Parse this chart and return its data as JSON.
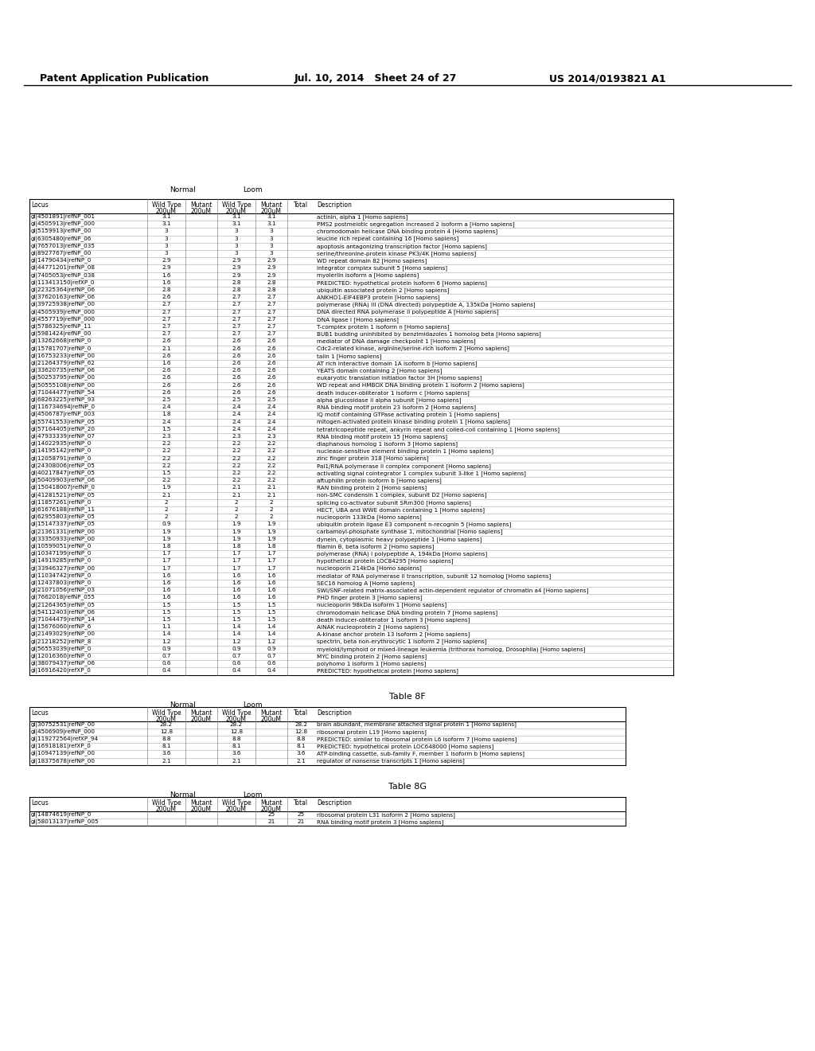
{
  "header_left": "Patent Application Publication",
  "header_middle": "Jul. 10, 2014   Sheet 24 of 27",
  "header_right": "US 2014/0193821 A1",
  "main_table_data": [
    [
      "gi|4501891|refNP_001",
      "3.1",
      "",
      "3.1",
      "3.1",
      "actinin, alpha 1 [Homo sapiens]"
    ],
    [
      "gi|4505913|refNP_000",
      "3.1",
      "",
      "3.1",
      "3.1",
      "PMS2 postmeiotic segregation increased 2 isoform a [Homo sapiens]"
    ],
    [
      "gi|5159913|refNP_00",
      "3",
      "",
      "3",
      "3",
      "chromodomain helicase DNA binding protein 4 [Homo sapiens]"
    ],
    [
      "gi|6305480|refNP_06",
      "3",
      "",
      "3",
      "3",
      "leucine rich repeat containing 16 [Homo sapiens]"
    ],
    [
      "gi|7657013|refNP_035",
      "3",
      "",
      "3",
      "3",
      "apoptosis antagonizing transcription factor [Homo sapiens]"
    ],
    [
      "gi|8927767|refNP_00",
      "3",
      "",
      "3",
      "3",
      "serine/threonine-protein kinase PK3/4K [Homo sapiens]"
    ],
    [
      "gi|14790434|refNP_0",
      "2.9",
      "",
      "2.9",
      "2.9",
      "WD repeat domain 82 [Homo sapiens]"
    ],
    [
      "gi|44771201|refNP_08",
      "2.9",
      "",
      "2.9",
      "2.9",
      "integrator complex subunit 5 [Homo sapiens]"
    ],
    [
      "gi|7405053|refNP_038",
      "1.6",
      "",
      "2.9",
      "2.9",
      "myolerlin isoform a [Homo sapiens]"
    ],
    [
      "gi|113413150|refXP_0",
      "1.6",
      "",
      "2.8",
      "2.8",
      "PREDICTED: hypothetical protein isoform 6 [Homo sapiens]"
    ],
    [
      "gi|22325364|refNP_06",
      "2.8",
      "",
      "2.8",
      "2.8",
      "ubiquitin associated protein 2 [Homo sapiens]"
    ],
    [
      "gi|37620163|refNP_06",
      "2.6",
      "",
      "2.7",
      "2.7",
      "ANKHD1-EIF4EBP3 protein [Homo sapiens]"
    ],
    [
      "gi|39725938|refNP_00",
      "2.7",
      "",
      "2.7",
      "2.7",
      "polymerase (RNA) III (DNA directed) polypeptide A, 135kDa [Homo sapiens]"
    ],
    [
      "gi|4505939|refNP_000",
      "2.7",
      "",
      "2.7",
      "2.7",
      "DNA directed RNA polymerase II polypeptide A [Homo sapiens]"
    ],
    [
      "gi|4557719|refNP_000",
      "2.7",
      "",
      "2.7",
      "2.7",
      "DNA ligase I [Homo sapiens]"
    ],
    [
      "gi|5786325|refNP_11",
      "2.7",
      "",
      "2.7",
      "2.7",
      "T-complex protein 1 isoform n [Homo sapiens]"
    ],
    [
      "gi|5981424|refNP_00",
      "2.7",
      "",
      "2.7",
      "2.7",
      "BUB1 budding uninhibited by benzimidazoles 1 homolog beta [Homo sapiens]"
    ],
    [
      "gi|13262668|refNP_0",
      "2.6",
      "",
      "2.6",
      "2.6",
      "mediator of DNA damage checkpoint 1 [Homo sapiens]"
    ],
    [
      "gi|15781707|refNP_0",
      "2.1",
      "",
      "2.6",
      "2.6",
      "Cdc2-related kinase, arginine/serine-rich isoform 2 [Homo sapiens]"
    ],
    [
      "gi|16753233|refNP_00",
      "2.6",
      "",
      "2.6",
      "2.6",
      "talin 1 [Homo sapiens]"
    ],
    [
      "gi|21264379|refNP_62",
      "1.6",
      "",
      "2.6",
      "2.6",
      "AT rich interactive domain 1A isoform b [Homo sapiens]"
    ],
    [
      "gi|33620735|refNP_06",
      "2.6",
      "",
      "2.6",
      "2.6",
      "YEATS domain containing 2 [Homo sapiens]"
    ],
    [
      "gi|50253795|refNP_00",
      "2.6",
      "",
      "2.6",
      "2.6",
      "eukaryotic translation initiation factor 3H [Homo sapiens]"
    ],
    [
      "gi|50555108|refNP_00",
      "2.6",
      "",
      "2.6",
      "2.6",
      "WD repeat and HMBOX DNA binding protein 1 isoform 2 [Homo sapiens]"
    ],
    [
      "gi|71044477|refNP_54",
      "2.6",
      "",
      "2.6",
      "2.6",
      "death inducer-obliterator 1 isoform c [Homo sapiens]"
    ],
    [
      "gi|68263225|refNP_93",
      "2.5",
      "",
      "2.5",
      "2.5",
      "alpha glucosidase II alpha subunit [Homo sapiens]"
    ],
    [
      "gi|116734694|refNP_0",
      "2.4",
      "",
      "2.4",
      "2.4",
      "RNA binding motif protein 23 isoform 2 [Homo sapiens]"
    ],
    [
      "gi|4506787|refNP_003",
      "1.8",
      "",
      "2.4",
      "2.4",
      "IQ motif containing GTPase activating protein 1 [Homo sapiens]"
    ],
    [
      "gi|55741553|refNP_05",
      "2.4",
      "",
      "2.4",
      "2.4",
      "mitogen-activated protein kinase binding protein 1 [Homo sapiens]"
    ],
    [
      "gi|57164405|refNP_20",
      "1.5",
      "",
      "2.4",
      "2.4",
      "tetratricopeptide repeat, ankyrin repeat and coiled-coil containing 1 [Homo sapiens]"
    ],
    [
      "gi|47933339|refNP_07",
      "2.3",
      "",
      "2.3",
      "2.3",
      "RNA binding motif protein 15 [Homo sapiens]"
    ],
    [
      "gi|14022935|refNP_0",
      "2.2",
      "",
      "2.2",
      "2.2",
      "diaphanous homolog 1 isoform 3 [Homo sapiens]"
    ],
    [
      "gi|14195142|refNP_0",
      "2.2",
      "",
      "2.2",
      "2.2",
      "nuclease-sensitive element binding protein 1 [Homo sapiens]"
    ],
    [
      "gi|12058791|refNP_0",
      "2.2",
      "",
      "2.2",
      "2.2",
      "zinc finger protein 318 [Homo sapiens]"
    ],
    [
      "gi|24308006|refNP_05",
      "2.2",
      "",
      "2.2",
      "2.2",
      "Pal1/RNA polymerase II complex component [Homo sapiens]"
    ],
    [
      "gi|40217847|refNP_05",
      "1.5",
      "",
      "2.2",
      "2.2",
      "activating signal cointegrator 1 complex subunit 3-like 1 [Homo sapiens]"
    ],
    [
      "gi|50409903|refNP_06",
      "2.2",
      "",
      "2.2",
      "2.2",
      "aftuphilin protein isoform b [Homo sapiens]"
    ],
    [
      "gi|150418007|refNP_0",
      "1.9",
      "",
      "2.1",
      "2.1",
      "RAN binding protein 2 [Homo sapiens]"
    ],
    [
      "gi|41281521|refNP_05",
      "2.1",
      "",
      "2.1",
      "2.1",
      "non-SMC condensin 1 complex, subunit D2 [Homo sapiens]"
    ],
    [
      "gi|11857261|refNP_0",
      "2",
      "",
      "2",
      "2",
      "splicing co-activator subunit SRm300 [Homo sapiens]"
    ],
    [
      "gi|61676188|refNP_11",
      "2",
      "",
      "2",
      "2",
      "HECT, UBA and WWE domain containing 1 [Homo sapiens]"
    ],
    [
      "gi|62955803|refNP_05",
      "2",
      "",
      "2",
      "2",
      "nucleoporin 133kDa [Homo sapiens]"
    ],
    [
      "gi|15147337|refNP_05",
      "0.9",
      "",
      "1.9",
      "1.9",
      "ubiquitin protein ligase E3 component n-recognin 5 [Homo sapiens]"
    ],
    [
      "gi|21361331|refNP_00",
      "1.9",
      "",
      "1.9",
      "1.9",
      "carbamoyl-phosphate synthase 1, mitochondrial [Homo sapiens]"
    ],
    [
      "gi|33350933|refNP_00",
      "1.9",
      "",
      "1.9",
      "1.9",
      "dynein, cytoplasmic heavy polypeptide 1 [Homo sapiens]"
    ],
    [
      "gi|10599051|refNP_0",
      "1.8",
      "",
      "1.8",
      "1.8",
      "filamin B, beta isoform 2 [Homo sapiens]"
    ],
    [
      "gi|10347199|refNP_0",
      "1.7",
      "",
      "1.7",
      "1.7",
      "polymerase (RNA) I polypeptide A, 194kDa [Homo sapiens]"
    ],
    [
      "gi|14919285|refNP_0",
      "1.7",
      "",
      "1.7",
      "1.7",
      "hypothetical protein LOC84295 [Homo sapiens]"
    ],
    [
      "gi|33946327|refNP_00",
      "1.7",
      "",
      "1.7",
      "1.7",
      "nucleoporin 214kDa [Homo sapiens]"
    ],
    [
      "gi|11034742|refNP_0",
      "1.6",
      "",
      "1.6",
      "1.6",
      "mediator of RNA polymerase II transcription, subunit 12 homolog [Homo sapiens]"
    ],
    [
      "gi|12437803|refNP_0",
      "1.6",
      "",
      "1.6",
      "1.6",
      "SEC16 homolog A [Homo sapiens]"
    ],
    [
      "gi|21071056|refNP_03",
      "1.6",
      "",
      "1.6",
      "1.6",
      "SWI/SNF-related matrix-associated actin-dependent regulator of chromatin a4 [Homo sapiens]"
    ],
    [
      "gi|7662018|refNP_055",
      "1.6",
      "",
      "1.6",
      "1.6",
      "PHD finger protein 3 [Homo sapiens]"
    ],
    [
      "gi|21264365|refNP_05",
      "1.5",
      "",
      "1.5",
      "1.5",
      "nucleoporin 98kDa isoform 1 [Homo sapiens]"
    ],
    [
      "gi|54112403|refNP_06",
      "1.5",
      "",
      "1.5",
      "1.5",
      "chromodomain helicase DNA binding protein 7 [Homo sapiens]"
    ],
    [
      "gi|71044479|refNP_14",
      "1.5",
      "",
      "1.5",
      "1.5",
      "death inducer-obliterator 1 isoform 3 [Homo sapiens]"
    ],
    [
      "gi|15676060|refNP_6",
      "1.1",
      "",
      "1.4",
      "1.4",
      "AINAK nucleoprotein 2 [Homo sapiens]"
    ],
    [
      "gi|21493029|refNP_00",
      "1.4",
      "",
      "1.4",
      "1.4",
      "A-kinase anchor protein 13 isoform 2 [Homo sapiens]"
    ],
    [
      "gi|21218252|refNP_8",
      "1.2",
      "",
      "1.2",
      "1.2",
      "spectrin, beta non-erythrocytic 1 isoform 2 [Homo sapiens]"
    ],
    [
      "gi|56553039|refNP_0",
      "0.9",
      "",
      "0.9",
      "0.9",
      "myeloid/lymphoid or mixed-lineage leukemia (trithorax homolog, Drosophila) [Homo sapiens]"
    ],
    [
      "gi|12016360|refNP_0",
      "0.7",
      "",
      "0.7",
      "0.7",
      "MYC binding protein 2 [Homo sapiens]"
    ],
    [
      "gi|38079437|refNP_06",
      "0.6",
      "",
      "0.6",
      "0.6",
      "polyhomo 1 isoform 1 [Homo sapiens]"
    ],
    [
      "gi|16916420|refXP_0",
      "0.4",
      "",
      "0.4",
      "0.4",
      "PREDICTED: hypothetical protein [Homo sapiens]"
    ]
  ],
  "table8f_title": "Table 8F",
  "table8f_data": [
    [
      "gi|30752531|refNP_00",
      "28.2",
      "",
      "28.2",
      "",
      "28.2",
      "brain abundant, membrane attached signal protein 1 [Homo sapiens]"
    ],
    [
      "gi|4506909|refNP_000",
      "12.8",
      "",
      "12.8",
      "",
      "12.8",
      "ribosomal protein L19 [Homo sapiens]"
    ],
    [
      "gi|119272564|refXP_94",
      "8.8",
      "",
      "8.8",
      "",
      "8.8",
      "PREDICTED: similar to ribosomal protein L6 isoform 7 [Homo sapiens]"
    ],
    [
      "gi|16918181|refXP_0",
      "8.1",
      "",
      "8.1",
      "",
      "8.1",
      "PREDICTED: hypothetical protein LOC648000 [Homo sapiens]"
    ],
    [
      "gi|10947139|refNP_00",
      "3.6",
      "",
      "3.6",
      "",
      "3.6",
      "ATP-binding cassette, sub-family F, member 1 isoform b [Homo sapiens]"
    ],
    [
      "gi|18375678|refNP_00",
      "2.1",
      "",
      "2.1",
      "",
      "2.1",
      "regulator of nonsense transcripts 1 [Homo sapiens]"
    ]
  ],
  "table8g_title": "Table 8G",
  "table8g_data": [
    [
      "gi|14874619|refNP_0",
      "",
      "",
      "",
      "25",
      "25",
      "ribosomal protein L31 isoform 2 [Homo sapiens]"
    ],
    [
      "gi|58013137|refNP_005",
      "",
      "",
      "",
      "21",
      "21",
      "RNA binding motif protein 3 [Homo sapiens]"
    ]
  ],
  "bg_color": "#ffffff"
}
